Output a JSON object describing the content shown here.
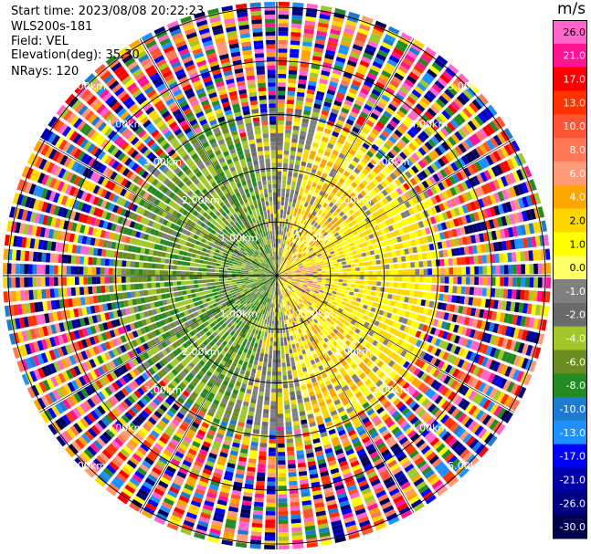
{
  "header": {
    "start_time": "Start time: 2023/08/08 20:22:23",
    "instrument": "WLS200s-181",
    "field": "Field: VEL",
    "elevation": "Elevation(deg): 35.30",
    "nrays": "NRays: 120"
  },
  "chart_data": {
    "type": "heatmap",
    "projection": "polar-ppi",
    "field": "VEL",
    "units": "m/s",
    "n_rays": 120,
    "elevation_deg": 35.3,
    "range_rings_km": [
      1.0,
      2.0,
      3.0,
      4.0,
      5.0
    ],
    "range_ring_labels": [
      "1.00km",
      "2.00km",
      "3.00km",
      "4.00km",
      "5.00km"
    ],
    "max_range_km": 5.1,
    "radial_lines_deg": [
      0,
      30,
      60,
      90,
      120,
      150,
      180,
      210,
      240,
      270,
      300,
      330
    ],
    "pattern": {
      "description_note": "",
      "positive_sector_center_deg": 90,
      "negative_sector_center_deg": 270,
      "coherent_range_km": 3.1
    },
    "colorbar": {
      "ticks": [
        "26.0",
        "21.0",
        "17.0",
        "13.0",
        "10.0",
        "8.0",
        "6.0",
        "4.0",
        "2.0",
        "1.0",
        "0.0",
        "-1.0",
        "-2.0",
        "-4.0",
        "-6.0",
        "-8.0",
        "-10.0",
        "-13.0",
        "-17.0",
        "-21.0",
        "-26.0",
        "-30.0"
      ],
      "colors": [
        "#ff66cc",
        "#ff1493",
        "#ff0000",
        "#ff3300",
        "#ff5533",
        "#ff7755",
        "#ff9977",
        "#ffa500",
        "#ffd700",
        "#ffff00",
        "#ffff66",
        "#808080",
        "#6b6b6b",
        "#a0c82a",
        "#6b8e23",
        "#228b22",
        "#1e7bd1",
        "#1e90ff",
        "#0000ff",
        "#0000aa",
        "#000080",
        "#000050"
      ]
    }
  }
}
